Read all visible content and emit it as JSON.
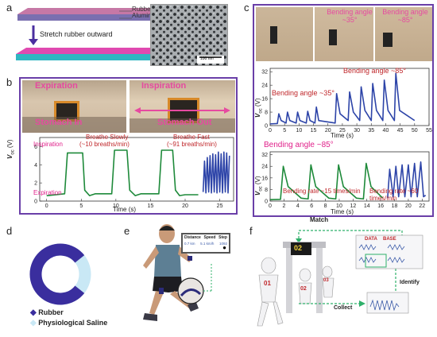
{
  "panels": {
    "a": {
      "label": "a",
      "layer_top": "Rubber",
      "layer_bottom": "Aluminum",
      "step": "Stretch rubber outward",
      "scalebar": "100 nm"
    },
    "b": {
      "label": "b",
      "photo_left_top": "Expiration",
      "photo_left_bottom": "Stomach In",
      "photo_right_top": "Inspiration",
      "photo_right_bottom": "Stomach Out",
      "ann_inspiration": "Inspiration",
      "ann_expiration": "Expiration",
      "ann_slow": "Breathe Slowly",
      "ann_slow_rate": "(~10 breaths/min)",
      "ann_fast": "Breathe Fast",
      "ann_fast_rate": "(~91 breaths/min)",
      "xlabel": "Time (s)",
      "ylabel_v": "V",
      "ylabel_sub": "oc",
      "ylabel_unit": " (V)"
    },
    "c": {
      "label": "c",
      "photo_mid": "Bending angle ~35°",
      "photo_right": "Bending angle ~85°",
      "top_ann_35": "Bending angle ~35°",
      "top_ann_85": "Bending angle ~85°",
      "top_xlabel": "Time (s)",
      "bot_ann_85": "Bending angle ~85°",
      "bot_ann_15": "Bending rate ~15 times/min",
      "bot_ann_60": "Bending rate ~60 times/min",
      "bot_xlabel": "Time (s)",
      "ylabel_v": "V",
      "ylabel_sub": "oc",
      "ylabel_unit": " (V)"
    },
    "d": {
      "label": "d",
      "legend_rubber": "Rubber",
      "legend_saline": "Physiological Saline",
      "color_rubber": "#3a2e9e",
      "color_saline": "#c9e8f5"
    },
    "e": {
      "label": "e",
      "hdr_distance": "Distance",
      "hdr_speed": "Speed",
      "hdr_step": "Step",
      "val_distance": "0.7 km",
      "val_speed": "5.1 km/h",
      "val_step": "1092"
    },
    "f": {
      "label": "f",
      "match": "Match",
      "display": "02",
      "database_1": "DATA",
      "database_2": "BASE",
      "identify": "Identify",
      "collect": "Collect",
      "person_1": "01",
      "person_2": "02",
      "person_3": "03"
    }
  },
  "chart_data": [
    {
      "type": "line",
      "panel": "b",
      "xlabel": "Time (s)",
      "ylabel": "Voc (V)",
      "xlim": [
        -1,
        27
      ],
      "ylim": [
        0,
        7
      ],
      "xticks": [
        0,
        5,
        10,
        15,
        20,
        25
      ],
      "yticks": [
        0,
        2,
        4,
        6
      ],
      "series": [
        {
          "color": "#1e8a3a",
          "x": [
            0,
            2.6,
            3.0,
            5.2,
            5.5,
            6.2,
            7.0,
            9.4,
            9.8,
            11.6,
            12.0,
            12.8,
            13.6,
            16.2,
            16.6,
            18.2,
            18.6,
            19.2,
            20.0,
            21.9
          ],
          "y": [
            0.6,
            0.8,
            5.3,
            5.3,
            1.2,
            0.6,
            0.8,
            0.8,
            5.6,
            5.6,
            1.2,
            0.6,
            0.8,
            0.8,
            5.6,
            5.6,
            1.2,
            0.6,
            0.7,
            0.7
          ]
        },
        {
          "color": "#2d44a8",
          "x": [
            22.6,
            22.8,
            23.0,
            23.2,
            23.4,
            23.6,
            23.8,
            24.0,
            24.2,
            24.4,
            24.6,
            24.8,
            25.0,
            25.2,
            25.4,
            25.6,
            25.8,
            26.0,
            26.2,
            26.4
          ],
          "y": [
            1.0,
            4.4,
            0.9,
            4.8,
            1.0,
            5.0,
            0.9,
            5.2,
            1.0,
            5.1,
            0.9,
            5.4,
            1.0,
            5.2,
            0.9,
            5.4,
            1.0,
            5.3,
            0.9,
            5.0
          ]
        }
      ]
    },
    {
      "type": "line",
      "panel": "c-top",
      "xlabel": "Time (s)",
      "ylabel": "Voc (V)",
      "xlim": [
        0,
        55
      ],
      "ylim": [
        0,
        34
      ],
      "xticks": [
        0,
        5,
        10,
        15,
        20,
        25,
        30,
        35,
        40,
        45,
        50,
        55
      ],
      "yticks": [
        0,
        8,
        16,
        24,
        32
      ],
      "series": [
        {
          "color": "#2d44a8",
          "x": [
            0,
            2.5,
            3.0,
            3.8,
            5.5,
            6.0,
            6.8,
            9.0,
            9.5,
            10.3,
            12.5,
            13.0,
            13.8,
            15.5,
            16.0,
            16.8,
            22.5,
            23.0,
            24.2,
            27.0,
            27.5,
            28.8,
            31.0,
            31.5,
            32.8,
            35.0,
            35.5,
            36.8,
            39.0,
            39.5,
            40.8,
            43.0,
            43.5,
            44.8,
            50.0
          ],
          "y": [
            1.0,
            1.2,
            7.0,
            3.0,
            1.5,
            8.0,
            3.0,
            1.5,
            8.0,
            3.0,
            1.5,
            8.5,
            3.0,
            1.5,
            11.0,
            3.0,
            1.5,
            19.0,
            7.0,
            3.0,
            20.0,
            8.0,
            3.0,
            23.0,
            9.0,
            3.0,
            25.0,
            9.0,
            3.0,
            27.0,
            9.0,
            3.0,
            31.0,
            9.0,
            3.0
          ]
        }
      ]
    },
    {
      "type": "line",
      "panel": "c-bottom",
      "xlabel": "Time (s)",
      "ylabel": "Voc (V)",
      "xlim": [
        0,
        23
      ],
      "ylim": [
        0,
        34
      ],
      "xticks": [
        0,
        2,
        4,
        6,
        8,
        10,
        12,
        14,
        16,
        18,
        20,
        22
      ],
      "yticks": [
        0,
        8,
        16,
        24,
        32
      ],
      "series": [
        {
          "color": "#1e8a3a",
          "x": [
            0,
            1.5,
            1.9,
            2.6,
            4.5,
            5.5,
            5.9,
            6.6,
            8.5,
            9.5,
            9.9,
            10.6,
            12.5,
            13.5,
            13.9,
            14.6,
            16.3
          ],
          "y": [
            1.0,
            1.2,
            24.0,
            10.0,
            2.0,
            1.5,
            25.0,
            10.0,
            2.0,
            1.5,
            25.0,
            10.0,
            2.0,
            1.5,
            26.0,
            10.0,
            2.0
          ]
        },
        {
          "color": "#2d44a8",
          "x": [
            17.0,
            17.3,
            17.8,
            18.2,
            18.6,
            19.1,
            19.5,
            20.0,
            20.4,
            20.9,
            21.3,
            21.8,
            22.2,
            22.5
          ],
          "y": [
            2.0,
            22.0,
            3.0,
            24.0,
            3.0,
            25.0,
            3.0,
            25.0,
            3.0,
            26.0,
            3.0,
            27.0,
            3.0,
            4.0
          ]
        }
      ]
    }
  ]
}
